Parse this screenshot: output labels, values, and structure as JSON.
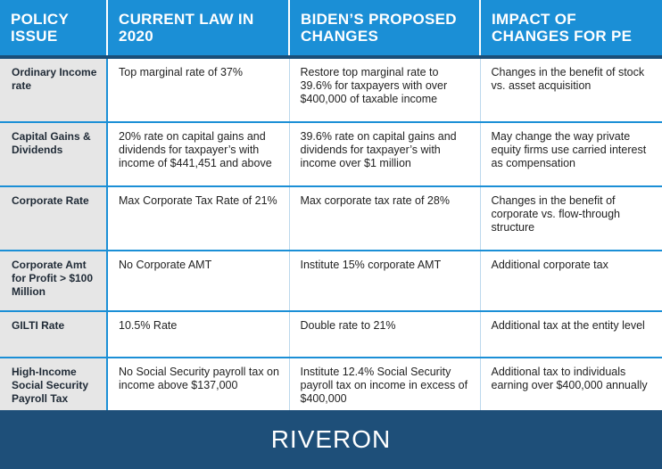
{
  "header": {
    "col0": "POLICY ISSUE",
    "col1": "CURRENT LAW IN 2020",
    "col2": "BIDEN’S PROPOSED CHANGES",
    "col3": "IMPACT OF CHANGES FOR PE"
  },
  "rows": [
    {
      "issue": "Ordinary Income rate",
      "current": "Top marginal rate of 37%",
      "proposed": "Restore top marginal rate to 39.6% for taxpayers with over $400,000 of taxable income",
      "impact": "Changes in the benefit of stock vs. asset acquisition"
    },
    {
      "issue": "Capital Gains & Dividends",
      "current": "20% rate on capital gains and dividends for taxpayer’s with income of $441,451 and above",
      "proposed": "39.6% rate on capital gains and dividends for taxpayer’s with income over $1 million",
      "impact": "May change the way private equity firms use carried interest as compensation"
    },
    {
      "issue": "Corporate Rate",
      "current": "Max Corporate Tax Rate of 21%",
      "proposed": "Max corporate tax rate of 28%",
      "impact": "Changes in the benefit of corporate vs. flow-through structure"
    },
    {
      "issue": "Corporate Amt for Profit > $100 Million",
      "current": "No Corporate AMT",
      "proposed": "Institute 15% corporate AMT",
      "impact": "Additional corporate tax"
    },
    {
      "issue": "GILTI Rate",
      "current": "10.5% Rate",
      "proposed": "Double rate to 21%",
      "impact": "Additional tax at the entity level"
    },
    {
      "issue": "High-Income Social Security Payroll Tax",
      "current": "No Social Security payroll tax on income above $137,000",
      "proposed": "Institute 12.4% Social Security payroll tax on income in excess of $400,000",
      "impact": "Additional tax to individuals earning over $400,000 annually"
    }
  ],
  "footer": {
    "logo": "RIVERON"
  },
  "colors": {
    "header_bg": "#1b8fd6",
    "footer_bg": "#1e4f79",
    "issue_bg": "#e6e6e6"
  }
}
